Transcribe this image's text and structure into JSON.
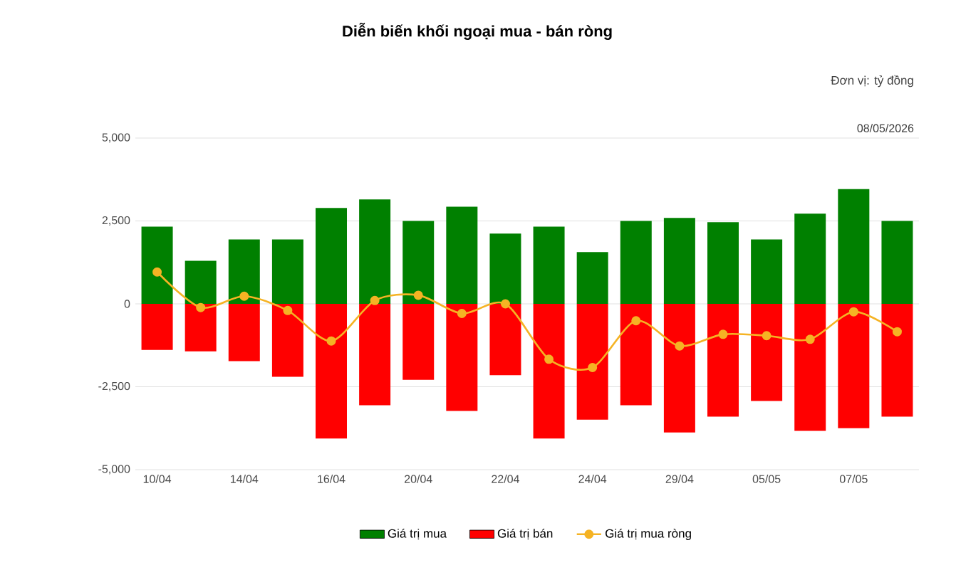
{
  "chart_data": {
    "type": "bar",
    "title": "Diễn biến khối ngoại mua - bán ròng",
    "subtitle": "Đơn vị: tỷ đồng",
    "annotations": [
      "08/05/2026"
    ],
    "categories": [
      "10/04",
      null,
      "14/04",
      null,
      "16/04",
      null,
      "20/04",
      null,
      "22/04",
      null,
      "24/04",
      null,
      "29/04",
      null,
      "05/05",
      null,
      "07/05",
      null
    ],
    "stacked": true,
    "series": [
      {
        "name": "Giá trị mua",
        "color": "#008000",
        "values": [
          2330,
          1300,
          1940,
          1940,
          2890,
          3150,
          2500,
          2930,
          2120,
          2330,
          1560,
          2500,
          2590,
          2460,
          1940,
          2720,
          3460,
          2500
        ]
      },
      {
        "name": "Giá trị bán",
        "color": "#ff0000",
        "values": [
          -1390,
          -1430,
          -1730,
          -2200,
          -4060,
          -3060,
          -2290,
          -3230,
          -2150,
          -4060,
          -3490,
          -3060,
          -3880,
          -3400,
          -2930,
          -3830,
          -3750,
          -3400
        ]
      },
      {
        "name": "Giá trị mua ròng",
        "type": "line",
        "color": "#f5b324",
        "marker": "circle",
        "values": [
          960,
          -110,
          230,
          -200,
          -1120,
          100,
          260,
          -290,
          0,
          -1670,
          -1920,
          -510,
          -1270,
          -920,
          -960,
          -1070,
          -240,
          -840
        ]
      }
    ],
    "ylim": [
      -5000,
      5000
    ],
    "yticks": [
      {
        "value": -5000,
        "label": "-5,000"
      },
      {
        "value": -2500,
        "label": "-2,500"
      },
      0,
      {
        "value": 2500,
        "label": "2,500"
      },
      {
        "value": 5000,
        "label": "5,000"
      }
    ],
    "grid": "y",
    "legend": "bottom"
  }
}
